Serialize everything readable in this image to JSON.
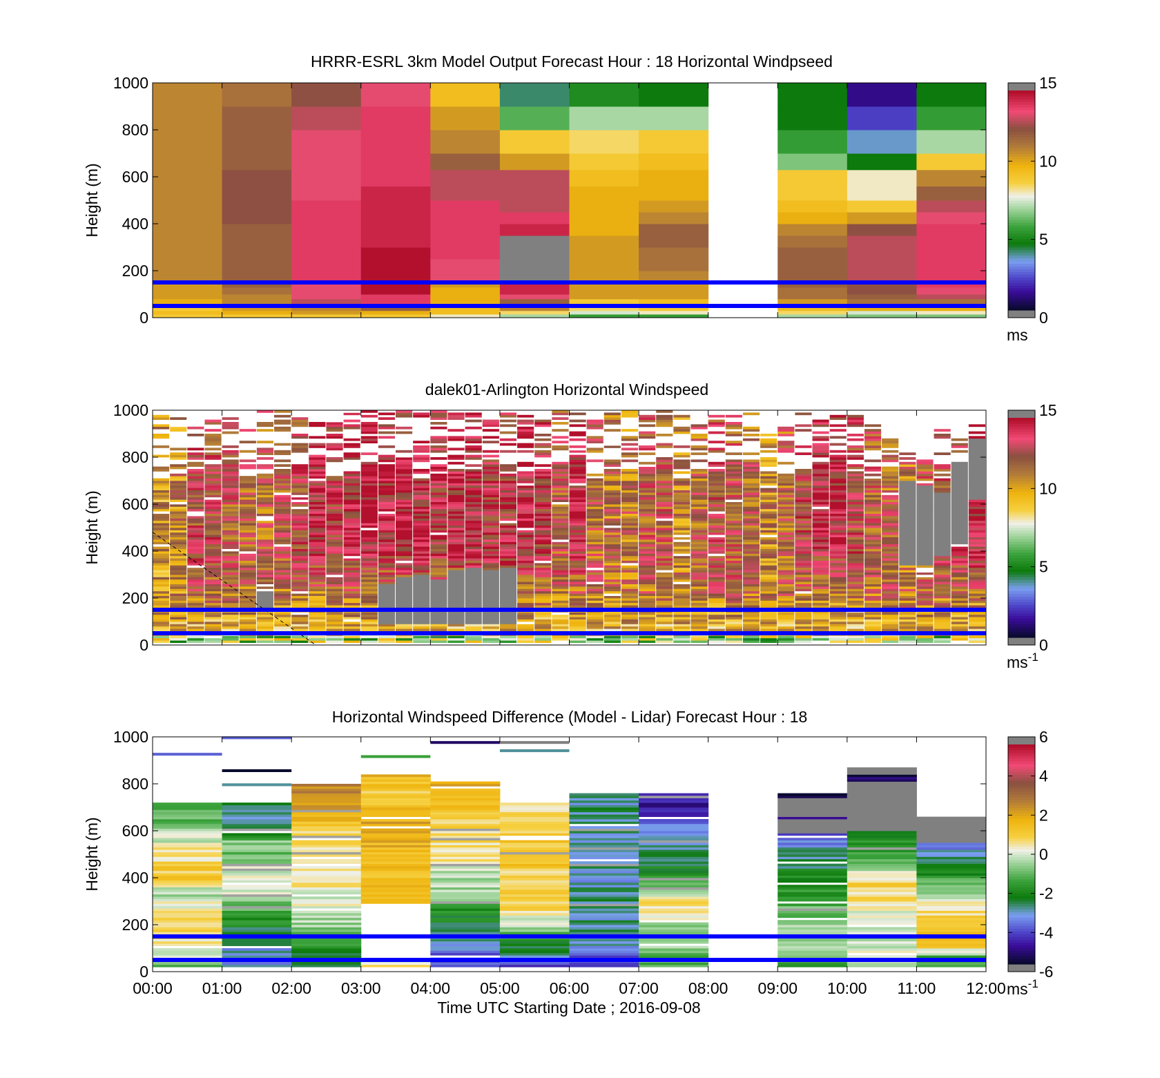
{
  "figure": {
    "xlabel": "Time UTC  Starting Date ; 2016-09-08",
    "x_tick_labels": [
      "00:00",
      "01:00",
      "02:00",
      "03:00",
      "04:00",
      "05:00",
      "06:00",
      "07:00",
      "08:00",
      "09:00",
      "10:00",
      "11:00",
      "12:00"
    ],
    "reference_heights_m": [
      150,
      50
    ],
    "reference_line_color": "#0000ff"
  },
  "chart_data": [
    {
      "type": "heatmap",
      "title": "HRRR-ESRL 3km Model Output   Forecast Hour : 18 Horizontal Windpseed",
      "ylabel": "Height (m)",
      "xlabel": "",
      "xlim_hours": [
        0,
        12
      ],
      "ylim": [
        0,
        1000
      ],
      "y_tick_labels": [
        "0",
        "200",
        "400",
        "600",
        "800",
        "1000"
      ],
      "colorbar": {
        "label": "ms",
        "label_superscript": "",
        "ticks": [
          "0",
          "5",
          "10",
          "15"
        ],
        "range": [
          0,
          15
        ]
      },
      "missing_color": "#ffffff",
      "flagged_color": "#808080",
      "bin_width_hours": 1,
      "levels_m": [
        0,
        15,
        30,
        50,
        80,
        100,
        130,
        160,
        200,
        250,
        300,
        350,
        400,
        450,
        500,
        560,
        630,
        700,
        800,
        900,
        1000
      ],
      "values": [
        [
          9,
          9.5,
          9,
          10,
          10.5,
          10.5,
          10.5,
          11,
          11,
          11,
          11,
          11,
          11,
          11,
          11,
          11,
          11,
          11,
          11,
          11
        ],
        [
          9,
          10,
          10.5,
          11,
          11,
          11.5,
          12,
          12,
          12,
          12,
          12,
          12,
          12.5,
          12.5,
          12.5,
          12.5,
          12,
          12,
          12,
          11.5
        ],
        [
          9,
          10.5,
          11,
          13,
          13.5,
          13.5,
          13.5,
          14,
          14,
          14,
          14,
          14,
          14,
          14,
          13.5,
          13.5,
          13.5,
          13.5,
          13,
          12.5
        ],
        [
          9,
          10,
          12,
          14,
          14,
          15,
          15,
          15,
          15,
          15,
          14.5,
          14.5,
          14.5,
          14.5,
          14.5,
          14,
          14,
          14,
          14,
          13.5
        ],
        [
          8,
          9.5,
          9.5,
          10,
          10,
          10,
          10.5,
          13.5,
          13.5,
          14,
          14,
          14,
          14,
          14,
          13,
          13,
          12,
          11,
          10.5,
          9.5
        ],
        [
          7,
          8.5,
          11,
          12,
          13.5,
          14.5,
          14.5,
          -1,
          -1,
          -1,
          -1,
          14.5,
          14,
          13,
          13,
          13,
          10.5,
          9,
          6,
          4
        ],
        [
          5.5,
          7.5,
          8.5,
          9,
          10.5,
          10.5,
          10.5,
          10.5,
          10.5,
          10.5,
          10.5,
          10,
          10,
          10,
          10,
          9.5,
          9,
          8.5,
          7,
          5
        ],
        [
          5.5,
          8,
          9,
          9.5,
          10.5,
          10.5,
          10.5,
          11,
          11.5,
          11.5,
          12,
          12,
          11,
          10.5,
          10,
          10,
          9.5,
          9,
          7,
          4.5
        ],
        [
          null,
          null,
          null,
          null,
          null,
          null,
          null,
          null,
          null,
          null,
          null,
          null,
          null,
          null,
          null,
          null,
          null,
          null,
          null,
          null
        ],
        [
          7,
          8.5,
          9.5,
          10.5,
          11.5,
          11.5,
          12,
          12,
          12,
          12,
          11.5,
          11,
          10,
          9.5,
          9,
          9,
          6.5,
          5.5,
          4.5,
          4.5
        ],
        [
          6.5,
          7.5,
          10,
          11.5,
          12,
          12.5,
          12.5,
          13,
          13,
          13,
          13,
          12.5,
          10.5,
          9,
          8,
          8,
          4.5,
          3.5,
          2,
          1
        ],
        [
          6.5,
          8,
          10,
          11.5,
          13,
          13.5,
          14,
          14,
          14,
          14,
          14,
          14,
          13.5,
          13,
          12,
          11,
          9,
          7,
          5.5,
          4.5
        ]
      ]
    },
    {
      "type": "heatmap",
      "title": "dalek01-Arlington  Horizontal Windspeed",
      "ylabel": "Height (m)",
      "xlabel": "",
      "xlim_hours": [
        0,
        12
      ],
      "ylim": [
        0,
        1000
      ],
      "y_tick_labels": [
        "0",
        "200",
        "400",
        "600",
        "800",
        "1000"
      ],
      "colorbar": {
        "label": "ms",
        "label_superscript": "-1",
        "ticks": [
          "0",
          "5",
          "10",
          "15"
        ],
        "range": [
          0,
          15
        ]
      },
      "missing_color": "#ffffff",
      "flagged_color": "#808080",
      "bin_width_hours": 0.25,
      "column_top_m": [
        980,
        970,
        960,
        960,
        970,
        990,
        1000,
        1000,
        990,
        980,
        990,
        1000,
        1000,
        1000,
        1000,
        1000,
        1000,
        1000,
        990,
        990,
        1000,
        980,
        1000,
        1000,
        1000,
        970,
        1000,
        1000,
        990,
        1000,
        990,
        990,
        990,
        980,
        990,
        970,
        990,
        1000,
        990,
        980,
        990,
        980,
        880,
        820,
        790,
        940,
        920,
        980
      ],
      "column_max_ws": [
        10.5,
        11,
        13,
        13,
        12.5,
        12,
        12,
        12.5,
        13,
        14,
        13.5,
        14,
        14.5,
        14,
        14,
        14,
        13.5,
        14,
        14,
        13.5,
        13.5,
        14.5,
        13.5,
        12.5,
        14,
        12,
        11.5,
        11.5,
        12.5,
        12.5,
        11,
        12,
        13,
        12.5,
        12,
        11,
        12,
        13,
        14,
        14,
        13,
        12.5,
        12,
        11.5,
        12.5,
        13,
        13.5,
        14
      ],
      "flagged_ranges_m": [
        {
          "col": 6,
          "from": 160,
          "to": 230
        },
        {
          "col": 13,
          "from": 90,
          "to": 260
        },
        {
          "col": 14,
          "from": 90,
          "to": 290
        },
        {
          "col": 15,
          "from": 90,
          "to": 300
        },
        {
          "col": 16,
          "from": 90,
          "to": 280
        },
        {
          "col": 17,
          "from": 90,
          "to": 320
        },
        {
          "col": 18,
          "from": 90,
          "to": 330
        },
        {
          "col": 19,
          "from": 90,
          "to": 320
        },
        {
          "col": 20,
          "from": 90,
          "to": 330
        },
        {
          "col": 43,
          "from": 340,
          "to": 700
        },
        {
          "col": 44,
          "from": 340,
          "to": 680
        },
        {
          "col": 45,
          "from": 380,
          "to": 650
        },
        {
          "col": 46,
          "from": 430,
          "to": 780
        },
        {
          "col": 47,
          "from": 620,
          "to": 880
        }
      ],
      "dashed_line": {
        "from": [
          0,
          480
        ],
        "to": [
          2.35,
          0
        ],
        "color": "#000000"
      }
    },
    {
      "type": "heatmap",
      "title": "Horizontal Windspeed Difference (Model - Lidar) Forecast Hour : 18",
      "ylabel": "Height (m)",
      "xlabel": "Time UTC  Starting Date ; 2016-09-08",
      "xlim_hours": [
        0,
        12
      ],
      "ylim": [
        0,
        1000
      ],
      "y_tick_labels": [
        "0",
        "200",
        "400",
        "600",
        "800",
        "1000"
      ],
      "colorbar": {
        "label": "ms",
        "label_superscript": "-1",
        "ticks": [
          "-6",
          "-4",
          "-2",
          "0",
          "2",
          "4",
          "6"
        ],
        "range": [
          -6,
          6
        ]
      },
      "missing_color": "#ffffff",
      "flagged_color": "#808080",
      "bin_width_hours": 1,
      "columns": [
        {
          "top": 720,
          "diffs": [
            -1.5,
            -0.5,
            0.5,
            1.0,
            0.8,
            0.2,
            -0.5,
            1.2,
            1.0,
            0.5,
            0.0,
            -0.3,
            -1.5,
            -0.8
          ],
          "isolated": [
            {
              "h": 920,
              "d": -4
            }
          ]
        },
        {
          "top": 720,
          "diffs": [
            -3.5,
            -3.5,
            -3.0,
            -2.5,
            -1.5,
            -1.0,
            0.5,
            0.2,
            -1.0,
            -0.5,
            -2.5,
            -3.5,
            -2.0
          ],
          "isolated": [
            {
              "h": 850,
              "d": -6
            },
            {
              "h": 790,
              "d": -3
            },
            {
              "h": 990,
              "d": -4
            }
          ]
        },
        {
          "top": 800,
          "diffs": [
            -3.5,
            -2.5,
            -1.0,
            -0.5,
            0.0,
            0.3,
            0.5,
            0.5,
            0.5,
            1.0,
            2.0,
            2.5,
            3.0
          ]
        },
        {
          "top": 840,
          "diffs": [
            0.5,
            0.0,
            1.5,
            1.5,
            1.8,
            1.5,
            1.5,
            1.5,
            2.0,
            2.0,
            1.5,
            1.0,
            2.0
          ],
          "missing_ranges": [
            {
              "from": 50,
              "to": 290
            }
          ],
          "isolated": [
            {
              "h": 910,
              "d": -1.5
            }
          ]
        },
        {
          "top": 810,
          "diffs": [
            -4.5,
            -4.0,
            -3.0,
            -2.5,
            -1.5,
            -0.5,
            -0.3,
            0.5,
            0.8,
            1.0,
            1.5,
            1.8,
            2.0
          ],
          "isolated": [
            {
              "h": 970,
              "d": -5.5
            }
          ]
        },
        {
          "top": 720,
          "diffs": [
            -4.5,
            -3.5,
            -2.0,
            -0.5,
            0.5,
            1.0,
            1.2,
            1.0,
            1.5,
            1.2,
            1.0,
            0.8,
            1.0
          ],
          "isolated": [
            {
              "h": 970,
              "d": 6.5
            },
            {
              "h": 935,
              "d": -3
            }
          ]
        },
        {
          "top": 760,
          "diffs": [
            -4.0,
            -4.0,
            -3.2,
            -3.0,
            -3.0,
            -3.0,
            -3.2,
            -3.0,
            -3.0,
            -3.2,
            -3.0,
            -3.0,
            -2.8
          ]
        },
        {
          "top": 760,
          "diffs": [
            -1.5,
            -1.0,
            -0.5,
            -0.5,
            0.5,
            0.5,
            -1.5,
            -2.5,
            -3.0,
            -3.0,
            -4.0,
            -5.0,
            -5.0
          ]
        },
        {
          "top": 0,
          "diffs": []
        },
        {
          "top": 760,
          "diffs": [
            -1.5,
            -1.0,
            -0.5,
            -0.5,
            -1.0,
            -1.5,
            -2.0,
            -2.5,
            -3.0,
            -4.0,
            -5.0,
            -5.5,
            -6.0
          ],
          "flagged_ranges": [
            {
              "from": 660,
              "to": 740
            },
            {
              "from": 590,
              "to": 650
            }
          ]
        },
        {
          "top": 870,
          "diffs": [
            -0.5,
            0.5,
            -0.5,
            0.0,
            0.5,
            1.0,
            -0.5,
            -1.5,
            -2.5,
            -3.5,
            -4.5,
            -5.5,
            -6.0
          ],
          "flagged_ranges": [
            {
              "from": 600,
              "to": 810
            },
            {
              "from": 840,
              "to": 870
            }
          ]
        },
        {
          "top": 660,
          "diffs": [
            -2.0,
            -1.5,
            1.5,
            1.5,
            1.0,
            0.5,
            -0.5,
            -1.5,
            -2.5,
            -3.0,
            -4.0,
            -5.0,
            -6.0
          ],
          "flagged_ranges": [
            {
              "from": 550,
              "to": 660
            }
          ]
        }
      ]
    }
  ]
}
